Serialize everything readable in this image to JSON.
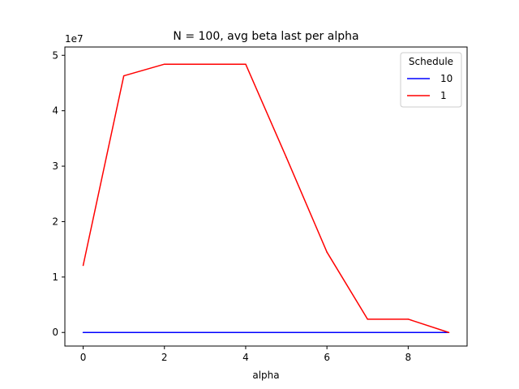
{
  "chart_data": {
    "type": "line",
    "title": "N = 100, avg beta last per alpha",
    "xlabel": "alpha",
    "ylabel": "",
    "y_offset_label": "1e7",
    "y_scale_factor": 10000000,
    "x": [
      0,
      1,
      2,
      3,
      4,
      5,
      6,
      7,
      8,
      9
    ],
    "xlim": [
      -0.45,
      9.45
    ],
    "ylim": [
      -2450000,
      51500000
    ],
    "xticks": [
      0,
      2,
      4,
      6,
      8
    ],
    "xtick_labels": [
      "0",
      "2",
      "4",
      "6",
      "8"
    ],
    "yticks": [
      0,
      10000000,
      20000000,
      30000000,
      40000000,
      50000000
    ],
    "ytick_labels": [
      "0",
      "1",
      "2",
      "3",
      "4",
      "5"
    ],
    "grid": false,
    "legend": {
      "title": "Schedule",
      "position": "top-right"
    },
    "series": [
      {
        "name": "10",
        "color": "#0000ff",
        "values": [
          0,
          0,
          0,
          0,
          0,
          0,
          0,
          0,
          0,
          0
        ]
      },
      {
        "name": "1",
        "color": "#ff0000",
        "values": [
          12100000,
          46300000,
          48400000,
          48400000,
          48400000,
          31600000,
          14500000,
          2400000,
          2400000,
          0
        ]
      }
    ]
  }
}
